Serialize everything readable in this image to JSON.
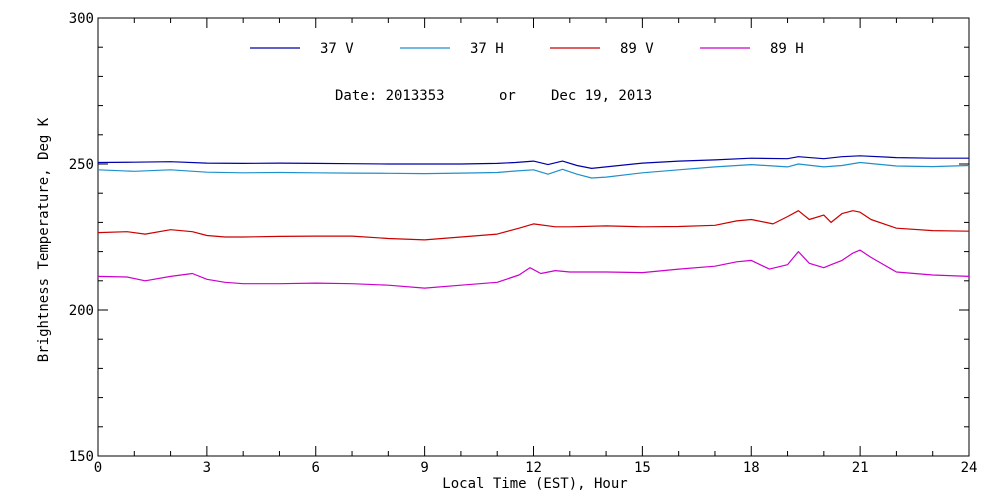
{
  "chart_data": {
    "type": "line",
    "xlabel": "Local Time (EST), Hour",
    "ylabel": "Brightness Temperature, Deg K",
    "xlim": [
      0,
      24
    ],
    "ylim": [
      150,
      300
    ],
    "x_ticks": [
      0,
      3,
      6,
      9,
      12,
      15,
      18,
      21,
      24
    ],
    "y_ticks": [
      150,
      200,
      250,
      300
    ],
    "grid": false,
    "legend_position": "top",
    "annotation": {
      "date_label": "Date: 2013353",
      "or_label": "or",
      "date_text": "Dec 19, 2013"
    },
    "series": [
      {
        "name": "37 V",
        "color": "#0000aa",
        "x": [
          0,
          1,
          2,
          3,
          4,
          5,
          6,
          7,
          8,
          9,
          10,
          11,
          11.5,
          12,
          12.4,
          12.8,
          13.2,
          13.6,
          14,
          15,
          16,
          17,
          18,
          19,
          19.3,
          20,
          20.5,
          21,
          22,
          23,
          24
        ],
        "y": [
          250.5,
          250.6,
          250.8,
          250.3,
          250.2,
          250.3,
          250.2,
          250.1,
          250,
          250,
          250,
          250.2,
          250.5,
          251,
          249.8,
          251,
          249.5,
          248.5,
          249,
          250.3,
          251,
          251.4,
          252,
          251.8,
          252.5,
          251.8,
          252.5,
          252.8,
          252.2,
          252,
          252
        ]
      },
      {
        "name": "37 H",
        "color": "#1e90cc",
        "x": [
          0,
          1,
          2,
          3,
          4,
          5,
          6,
          7,
          8,
          9,
          10,
          11,
          11.5,
          12,
          12.4,
          12.8,
          13.2,
          13.6,
          14,
          15,
          16,
          17,
          18,
          19,
          19.3,
          20,
          20.5,
          21,
          22,
          23,
          24
        ],
        "y": [
          248,
          247.5,
          248,
          247.2,
          247,
          247.1,
          247,
          246.9,
          246.8,
          246.7,
          246.9,
          247.1,
          247.6,
          248,
          246.5,
          248.2,
          246.5,
          245.2,
          245.5,
          247,
          248,
          249,
          249.8,
          249,
          250,
          249,
          249.5,
          250.5,
          249.3,
          249.1,
          249.5
        ]
      },
      {
        "name": "89 V",
        "color": "#cc0000",
        "x": [
          0,
          0.8,
          1.3,
          2,
          2.6,
          3,
          3.5,
          4,
          5,
          6,
          7,
          8,
          9,
          10,
          11,
          11.6,
          12,
          12.6,
          13,
          14,
          15,
          16,
          17,
          17.6,
          18,
          18.6,
          19,
          19.3,
          19.6,
          20,
          20.2,
          20.5,
          20.8,
          21,
          21.3,
          22,
          23,
          24
        ],
        "y": [
          226.5,
          226.8,
          226,
          227.5,
          226.8,
          225.5,
          225,
          225,
          225.2,
          225.3,
          225.3,
          224.5,
          224,
          225,
          226,
          228,
          229.5,
          228.5,
          228.5,
          228.8,
          228.5,
          228.6,
          229,
          230.5,
          231,
          229.5,
          232,
          234,
          231,
          232.5,
          230,
          233,
          234,
          233.5,
          231,
          228,
          227.2,
          227
        ]
      },
      {
        "name": "89 H",
        "color": "#cc00cc",
        "x": [
          0,
          0.8,
          1.3,
          2,
          2.6,
          3,
          3.5,
          4,
          5,
          6,
          7,
          8,
          9,
          10,
          11,
          11.6,
          11.9,
          12.2,
          12.6,
          13,
          14,
          15,
          16,
          17,
          17.6,
          18,
          18.5,
          19,
          19.3,
          19.6,
          20,
          20.2,
          20.5,
          20.8,
          21,
          21.3,
          22,
          23,
          24
        ],
        "y": [
          211.5,
          211.3,
          210,
          211.5,
          212.5,
          210.5,
          209.5,
          209,
          209,
          209.2,
          209,
          208.5,
          207.5,
          208.5,
          209.5,
          212,
          214.5,
          212.5,
          213.5,
          213,
          213,
          212.8,
          214,
          215,
          216.5,
          217,
          214,
          215.5,
          220,
          216,
          214.5,
          215.5,
          217,
          219.5,
          220.5,
          218,
          213,
          212,
          211.5
        ]
      }
    ]
  }
}
